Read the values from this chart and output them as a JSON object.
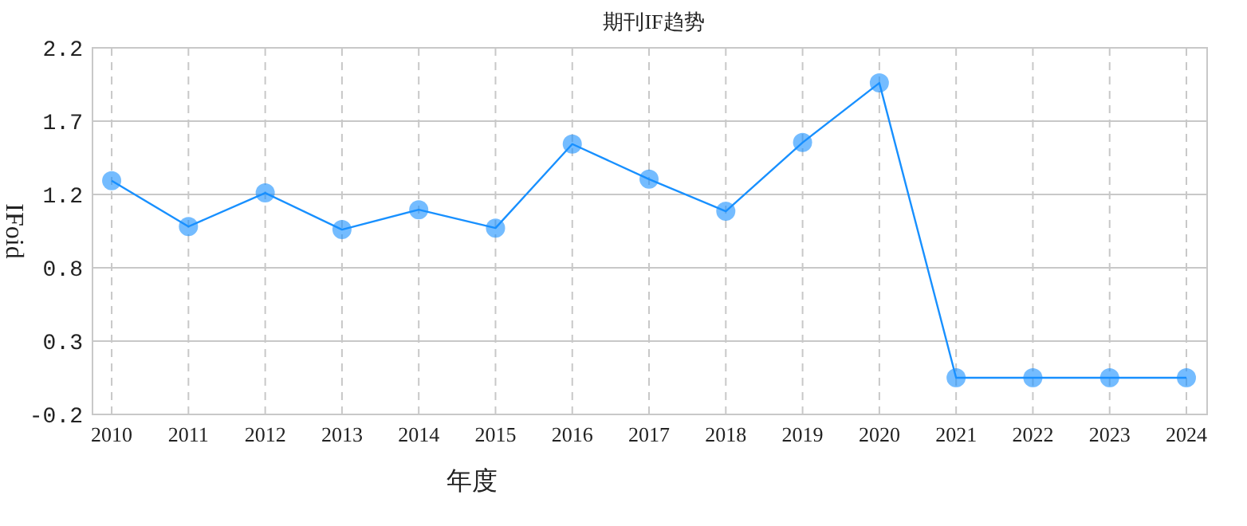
{
  "chart_data": {
    "type": "line",
    "title": "期刊IF趋势",
    "xlabel": "年度",
    "ylabel": "IFoid",
    "categories": [
      "2010",
      "2011",
      "2012",
      "2013",
      "2014",
      "2015",
      "2016",
      "2017",
      "2018",
      "2019",
      "2020",
      "2021",
      "2022",
      "2023",
      "2024"
    ],
    "series": [
      {
        "color": "#1890ff",
        "values": [
          1.33,
          1.03,
          1.25,
          1.01,
          1.14,
          1.02,
          1.57,
          1.34,
          1.13,
          1.58,
          1.97,
          0.04,
          0.04,
          0.04,
          0.04
        ]
      }
    ],
    "ylim": [
      -0.2,
      2.2
    ],
    "yticks": [
      -0.2,
      {
        "value": 0.28,
        "label": "0.3"
      },
      {
        "value": 0.76,
        "label": "0.8"
      },
      {
        "value": 1.24,
        "label": "1.2"
      },
      {
        "value": 1.72,
        "label": "1.7"
      },
      2.2
    ],
    "grid": true,
    "marker": "circle",
    "line_style": "solid"
  }
}
